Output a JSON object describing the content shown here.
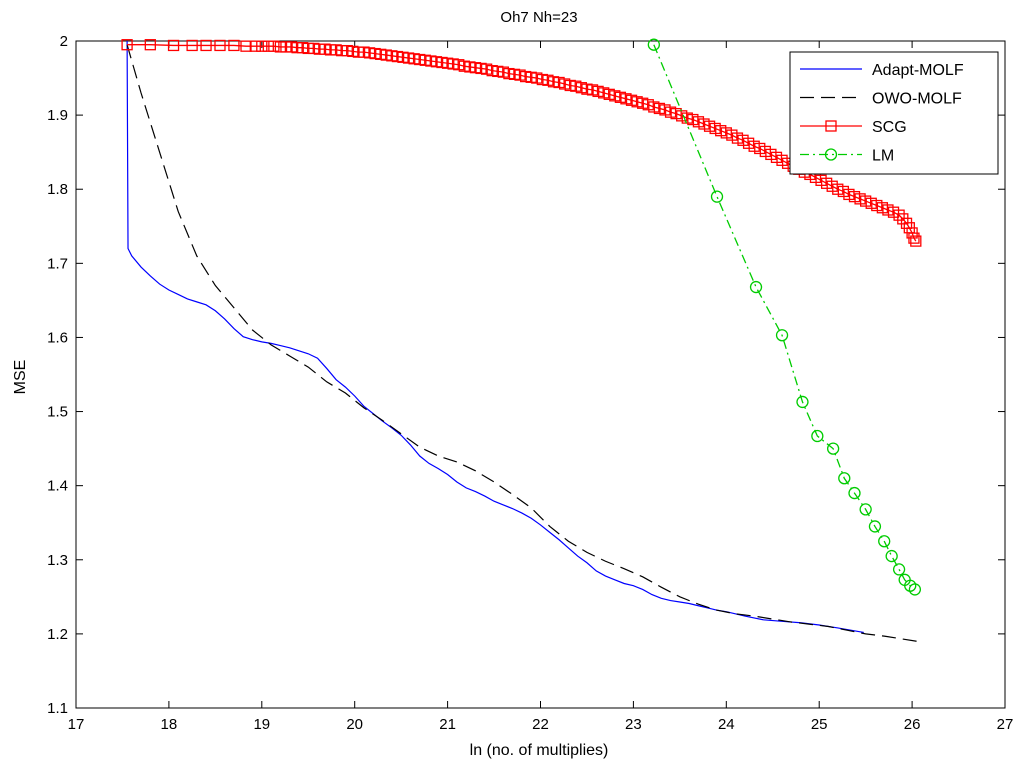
{
  "chart_data": {
    "type": "line",
    "title": "Oh7 Nh=23",
    "xlabel": "ln (no. of multiplies)",
    "ylabel": "MSE",
    "xlim": [
      17,
      27
    ],
    "ylim": [
      1.1,
      2.0
    ],
    "xticks": [
      17,
      18,
      19,
      20,
      21,
      22,
      23,
      24,
      25,
      26,
      27
    ],
    "yticks": [
      1.1,
      1.2,
      1.3,
      1.4,
      1.5,
      1.6,
      1.7,
      1.8,
      1.9,
      2.0
    ],
    "xtick_labels": [
      "17",
      "18",
      "19",
      "20",
      "21",
      "22",
      "23",
      "24",
      "25",
      "26",
      "27"
    ],
    "ytick_labels": [
      "1.1",
      "1.2",
      "1.3",
      "1.4",
      "1.5",
      "1.6",
      "1.7",
      "1.8",
      "1.9",
      "2"
    ],
    "grid": false,
    "legend_position": "top-right",
    "series": [
      {
        "name": "Adapt-MOLF",
        "color": "#0000ff",
        "style": "solid",
        "marker": "none",
        "x": [
          17.55,
          17.56,
          17.6,
          17.7,
          17.8,
          17.9,
          18.0,
          18.1,
          18.2,
          18.3,
          18.4,
          18.5,
          18.6,
          18.7,
          18.8,
          18.9,
          19.0,
          19.1,
          19.2,
          19.3,
          19.4,
          19.5,
          19.6,
          19.7,
          19.8,
          19.9,
          20.0,
          20.1,
          20.2,
          20.3,
          20.4,
          20.5,
          20.6,
          20.7,
          20.8,
          20.9,
          21.0,
          21.1,
          21.2,
          21.3,
          21.4,
          21.5,
          21.6,
          21.7,
          21.8,
          21.9,
          22.0,
          22.1,
          22.2,
          22.3,
          22.4,
          22.5,
          22.6,
          22.7,
          22.8,
          22.9,
          23.0,
          23.1,
          23.2,
          23.3,
          23.4,
          23.5,
          23.6,
          23.7,
          23.8,
          23.9,
          24.0,
          24.2,
          24.4,
          24.6,
          24.8,
          25.0,
          25.2,
          25.48
        ],
        "values": [
          2.0,
          1.72,
          1.71,
          1.695,
          1.683,
          1.672,
          1.664,
          1.658,
          1.652,
          1.648,
          1.644,
          1.636,
          1.625,
          1.612,
          1.601,
          1.597,
          1.594,
          1.592,
          1.589,
          1.586,
          1.582,
          1.578,
          1.572,
          1.558,
          1.543,
          1.533,
          1.521,
          1.507,
          1.497,
          1.487,
          1.478,
          1.468,
          1.455,
          1.44,
          1.43,
          1.423,
          1.415,
          1.405,
          1.397,
          1.392,
          1.386,
          1.379,
          1.374,
          1.369,
          1.363,
          1.356,
          1.347,
          1.337,
          1.327,
          1.316,
          1.305,
          1.296,
          1.285,
          1.278,
          1.273,
          1.268,
          1.265,
          1.26,
          1.253,
          1.248,
          1.245,
          1.243,
          1.241,
          1.238,
          1.235,
          1.232,
          1.23,
          1.224,
          1.219,
          1.217,
          1.215,
          1.212,
          1.208,
          1.202
        ]
      },
      {
        "name": "OWO-MOLF",
        "color": "#000000",
        "style": "dashed",
        "marker": "none",
        "x": [
          17.55,
          17.7,
          17.9,
          18.1,
          18.3,
          18.5,
          18.7,
          18.9,
          19.1,
          19.3,
          19.5,
          19.7,
          19.9,
          20.1,
          20.3,
          20.5,
          20.7,
          20.9,
          21.1,
          21.3,
          21.5,
          21.7,
          21.9,
          22.1,
          22.3,
          22.5,
          22.7,
          22.9,
          23.1,
          23.3,
          23.5,
          23.7,
          23.9,
          24.1,
          24.3,
          24.5,
          24.7,
          24.9,
          25.1,
          25.3,
          25.5,
          25.7,
          25.9,
          26.05
        ],
        "values": [
          1.995,
          1.93,
          1.85,
          1.77,
          1.71,
          1.67,
          1.64,
          1.61,
          1.59,
          1.575,
          1.56,
          1.54,
          1.525,
          1.505,
          1.488,
          1.47,
          1.452,
          1.44,
          1.432,
          1.42,
          1.405,
          1.388,
          1.37,
          1.345,
          1.325,
          1.31,
          1.298,
          1.288,
          1.277,
          1.263,
          1.25,
          1.24,
          1.232,
          1.227,
          1.224,
          1.22,
          1.216,
          1.213,
          1.21,
          1.205,
          1.2,
          1.197,
          1.193,
          1.19
        ]
      },
      {
        "name": "SCG",
        "color": "#ff0000",
        "style": "solid",
        "marker": "square",
        "x": [
          17.55,
          17.8,
          18.05,
          18.25,
          18.4,
          18.55,
          18.7,
          18.83,
          18.93,
          19.0,
          19.07,
          19.13,
          19.2,
          19.26,
          19.32,
          19.38,
          19.44,
          19.5,
          19.56,
          19.62,
          19.68,
          19.74,
          19.8,
          19.86,
          19.92,
          19.98,
          20.04,
          20.1,
          20.16,
          20.22,
          20.28,
          20.34,
          20.4,
          20.46,
          20.52,
          20.58,
          20.64,
          20.7,
          20.76,
          20.82,
          20.88,
          20.94,
          21.0,
          21.06,
          21.12,
          21.18,
          21.24,
          21.3,
          21.36,
          21.42,
          21.48,
          21.54,
          21.6,
          21.66,
          21.72,
          21.78,
          21.84,
          21.9,
          21.96,
          22.02,
          22.08,
          22.14,
          22.2,
          22.26,
          22.32,
          22.38,
          22.44,
          22.5,
          22.56,
          22.62,
          22.68,
          22.74,
          22.8,
          22.86,
          22.92,
          22.98,
          23.04,
          23.1,
          23.16,
          23.22,
          23.28,
          23.34,
          23.4,
          23.46,
          23.52,
          23.58,
          23.64,
          23.7,
          23.76,
          23.82,
          23.88,
          23.94,
          24.0,
          24.06,
          24.12,
          24.18,
          24.24,
          24.3,
          24.36,
          24.42,
          24.48,
          24.54,
          24.6,
          24.66,
          24.72,
          24.78,
          24.84,
          24.9,
          24.96,
          25.02,
          25.08,
          25.14,
          25.2,
          25.26,
          25.32,
          25.38,
          25.44,
          25.5,
          25.56,
          25.62,
          25.68,
          25.74,
          25.8,
          25.86,
          25.9,
          25.94,
          25.97,
          26.0,
          26.02,
          26.04
        ],
        "values": [
          1.995,
          1.995,
          1.994,
          1.994,
          1.994,
          1.994,
          1.994,
          1.993,
          1.993,
          1.993,
          1.993,
          1.993,
          1.992,
          1.992,
          1.992,
          1.991,
          1.991,
          1.99,
          1.99,
          1.989,
          1.989,
          1.988,
          1.988,
          1.987,
          1.987,
          1.986,
          1.985,
          1.985,
          1.984,
          1.983,
          1.982,
          1.981,
          1.98,
          1.979,
          1.978,
          1.977,
          1.976,
          1.975,
          1.974,
          1.973,
          1.972,
          1.971,
          1.97,
          1.969,
          1.968,
          1.966,
          1.965,
          1.964,
          1.963,
          1.962,
          1.96,
          1.959,
          1.958,
          1.956,
          1.955,
          1.954,
          1.952,
          1.951,
          1.95,
          1.948,
          1.947,
          1.945,
          1.944,
          1.942,
          1.94,
          1.939,
          1.937,
          1.935,
          1.934,
          1.932,
          1.93,
          1.928,
          1.926,
          1.924,
          1.922,
          1.92,
          1.918,
          1.916,
          1.914,
          1.911,
          1.909,
          1.907,
          1.904,
          1.902,
          1.899,
          1.896,
          1.894,
          1.891,
          1.888,
          1.885,
          1.882,
          1.879,
          1.876,
          1.873,
          1.869,
          1.866,
          1.862,
          1.858,
          1.855,
          1.851,
          1.847,
          1.843,
          1.839,
          1.835,
          1.831,
          1.827,
          1.823,
          1.82,
          1.816,
          1.812,
          1.808,
          1.804,
          1.8,
          1.797,
          1.793,
          1.79,
          1.787,
          1.784,
          1.781,
          1.778,
          1.775,
          1.772,
          1.769,
          1.765,
          1.76,
          1.754,
          1.748,
          1.741,
          1.734,
          1.73
        ]
      },
      {
        "name": "LM",
        "color": "#00cc00",
        "style": "dash-dot",
        "marker": "circle",
        "x": [
          23.22,
          23.9,
          24.32,
          24.6,
          24.82,
          24.98,
          25.15,
          25.27,
          25.38,
          25.5,
          25.6,
          25.7,
          25.78,
          25.86,
          25.92,
          25.98,
          26.03
        ],
        "values": [
          1.995,
          1.79,
          1.668,
          1.603,
          1.513,
          1.467,
          1.45,
          1.41,
          1.39,
          1.368,
          1.345,
          1.325,
          1.305,
          1.287,
          1.273,
          1.265,
          1.26
        ]
      }
    ]
  }
}
